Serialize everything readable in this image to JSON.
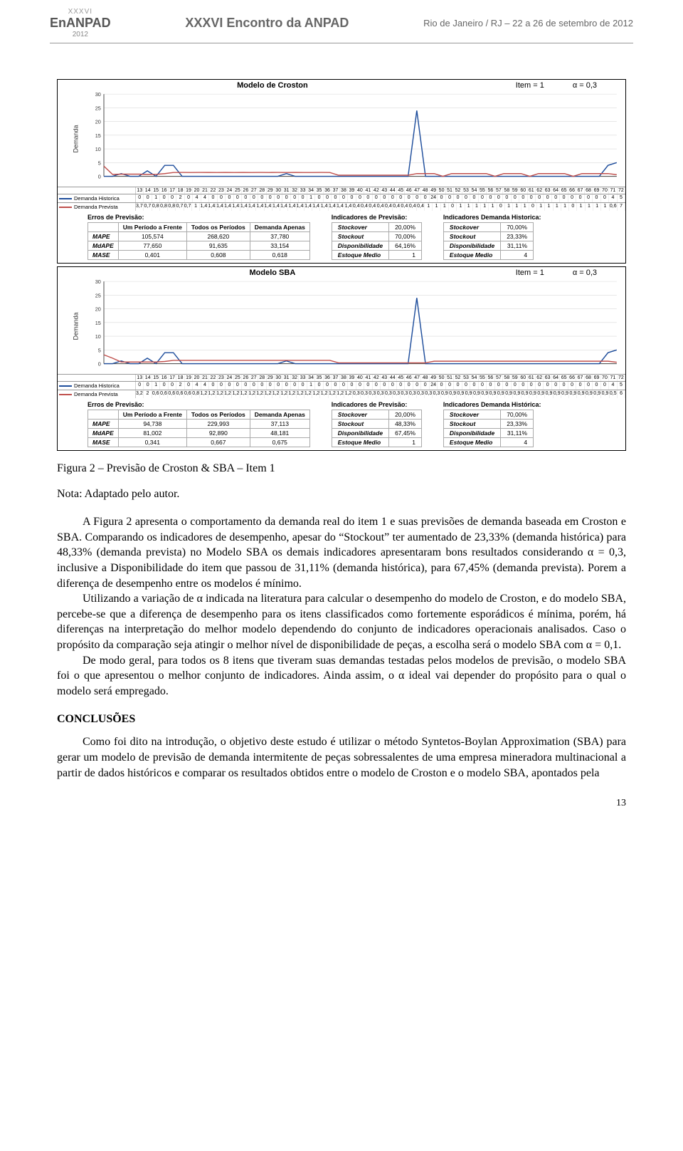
{
  "banner": {
    "roman": "XXXVI",
    "brand": "EnANPAD",
    "year": "2012",
    "center": "XXXVI Encontro da ANPAD",
    "right": "Rio de Janeiro / RJ – 22 a 26 de setembro de 2012"
  },
  "chart_common": {
    "y_ticks": [
      0,
      5,
      10,
      15,
      20,
      25,
      30
    ],
    "ymax": 30,
    "x_categories": [
      13,
      14,
      15,
      16,
      17,
      18,
      19,
      20,
      21,
      22,
      23,
      24,
      25,
      26,
      27,
      28,
      29,
      30,
      31,
      32,
      33,
      34,
      35,
      36,
      37,
      38,
      39,
      40,
      41,
      42,
      43,
      44,
      45,
      46,
      47,
      48,
      49,
      50,
      51,
      52,
      53,
      54,
      55,
      56,
      57,
      58,
      59,
      60,
      61,
      62,
      63,
      64,
      65,
      66,
      67,
      68,
      69,
      70,
      71,
      72
    ],
    "ylabel": "Demanda",
    "legend_hist": "Demanda Historica",
    "legend_prev": "Demanda Prevista",
    "item_label": "Item = 1",
    "alpha_label": "α = 0,3",
    "color_hist": "#1f4e9c",
    "color_prev": "#c0504d",
    "grid_color": "#d9d9d9",
    "axis_color": "#555555",
    "font_size_axis": 7
  },
  "croston": {
    "title": "Modelo de Croston",
    "hist": [
      0,
      0,
      1,
      0,
      0,
      2,
      0,
      4,
      4,
      0,
      0,
      0,
      0,
      0,
      0,
      0,
      0,
      0,
      0,
      0,
      0,
      1,
      0,
      0,
      0,
      0,
      0,
      0,
      0,
      0,
      0,
      0,
      0,
      0,
      0,
      0,
      24,
      0,
      0,
      0,
      0,
      0,
      0,
      0,
      0,
      0,
      0,
      0,
      0,
      0,
      0,
      0,
      0,
      0,
      0,
      0,
      0,
      0,
      4,
      5
    ],
    "prev": [
      3.73,
      0.7,
      0.8,
      0.8,
      0.8,
      0.7,
      0.71,
      1.0,
      1.4,
      1.43,
      1.4,
      1.43,
      1.41,
      1.4,
      1.41,
      1.4,
      1.41,
      1.4,
      1.43,
      1.4,
      1.43,
      1.4,
      1.41,
      1.4,
      1.4,
      1.43,
      1.4,
      0.4,
      0.4,
      0.4,
      0.4,
      0.4,
      0.4,
      0.4,
      0.4,
      0.4,
      1.0,
      1.0,
      1.0,
      0.0,
      1.0,
      1.0,
      1.0,
      1.0,
      1.0,
      0.0,
      1.0,
      1.0,
      1.0,
      0.0,
      1.0,
      1.0,
      1.0,
      1.0,
      0.0,
      1.0,
      1.0,
      1.0,
      1.0,
      0.6,
      7
    ],
    "errors": {
      "title": "Erros de Previsão:",
      "cols": [
        "",
        "Um Período a Frente",
        "Todos os Períodos",
        "Demanda Apenas"
      ],
      "rows": [
        [
          "MAPE",
          "105,574",
          "268,620",
          "37,780"
        ],
        [
          "MdAPE",
          "77,650",
          "91,635",
          "33,154"
        ],
        [
          "MASE",
          "0,401",
          "0,608",
          "0,618"
        ]
      ]
    },
    "ind_prev": {
      "title": "Indicadores de Previsão:",
      "rows": [
        [
          "Stockover",
          "20,00%"
        ],
        [
          "Stockout",
          "70,00%"
        ],
        [
          "Disponibilidade",
          "64,16%"
        ],
        [
          "Estoque Medio",
          "1"
        ]
      ]
    },
    "ind_hist": {
      "title": "Indicadores Demanda Historica:",
      "rows": [
        [
          "Stockover",
          "70,00%"
        ],
        [
          "Stockout",
          "23,33%"
        ],
        [
          "Disponibilidade",
          "31,11%"
        ],
        [
          "Estoque Medio",
          "4"
        ]
      ]
    }
  },
  "sba": {
    "title": "Modelo SBA",
    "hist": [
      0,
      0,
      1,
      0,
      0,
      2,
      0,
      4,
      4,
      0,
      0,
      0,
      0,
      0,
      0,
      0,
      0,
      0,
      0,
      0,
      0,
      1,
      0,
      0,
      0,
      0,
      0,
      0,
      0,
      0,
      0,
      0,
      0,
      0,
      0,
      0,
      24,
      0,
      0,
      0,
      0,
      0,
      0,
      0,
      0,
      0,
      0,
      0,
      0,
      0,
      0,
      0,
      0,
      0,
      0,
      0,
      0,
      0,
      4,
      5
    ],
    "prev": [
      3.23,
      2.0,
      0.6,
      0.6,
      0.6,
      0.6,
      0.6,
      0.8,
      1.2,
      1.21,
      1.2,
      1.21,
      1.2,
      1.21,
      1.2,
      1.21,
      1.2,
      1.21,
      1.2,
      1.21,
      1.2,
      1.21,
      1.2,
      1.2,
      1.2,
      1.2,
      1.2,
      0.3,
      0.3,
      0.3,
      0.3,
      0.3,
      0.3,
      0.3,
      0.3,
      0.3,
      0.3,
      0.3,
      0.9,
      0.9,
      0.9,
      0.9,
      0.9,
      0.9,
      0.9,
      0.9,
      0.9,
      0.9,
      0.9,
      0.9,
      0.9,
      0.9,
      0.9,
      0.9,
      0.9,
      0.9,
      0.9,
      0.9,
      0.9,
      0.5,
      6
    ],
    "errors": {
      "title": "Erros de Previsão:",
      "cols": [
        "",
        "Um Período a Frente",
        "Todos os Períodos",
        "Demanda Apenas"
      ],
      "rows": [
        [
          "MAPE",
          "94,738",
          "229,993",
          "37,113"
        ],
        [
          "MdAPE",
          "81,002",
          "92,890",
          "48,181"
        ],
        [
          "MASE",
          "0,341",
          "0,667",
          "0,675"
        ]
      ]
    },
    "ind_prev": {
      "title": "Indicadores de Previsão:",
      "rows": [
        [
          "Stockover",
          "20,00%"
        ],
        [
          "Stockout",
          "48,33%"
        ],
        [
          "Disponibilidade",
          "67,45%"
        ],
        [
          "Estoque Medio",
          "1"
        ]
      ]
    },
    "ind_hist": {
      "title": "Indicadores Demanda Histórica:",
      "rows": [
        [
          "Stockover",
          "70,00%"
        ],
        [
          "Stockout",
          "23,33%"
        ],
        [
          "Disponibilidade",
          "31,11%"
        ],
        [
          "Estoque Medio",
          "4"
        ]
      ]
    }
  },
  "text": {
    "caption_l1": "Figura 2 – Previsão de Croston & SBA – Item 1",
    "caption_l2": "Nota: Adaptado pelo autor.",
    "p1": "A Figura 2 apresenta o comportamento da demanda real do item 1 e suas previsões de demanda baseada em Croston e SBA. Comparando os indicadores de desempenho, apesar do “Stockout” ter aumentado de 23,33% (demanda histórica) para 48,33% (demanda prevista) no Modelo SBA os demais indicadores apresentaram bons resultados considerando α = 0,3, inclusive a Disponibilidade do item que passou de 31,11% (demanda histórica), para 67,45% (demanda prevista). Porem a diferença de desempenho entre os modelos é mínimo.",
    "p2": "Utilizando a variação de α indicada na literatura para calcular o desempenho do modelo de Croston, e do modelo SBA, percebe-se que a diferença de desempenho para os itens classificados como fortemente esporádicos é mínima, porém, há diferenças na interpretação do melhor modelo dependendo do conjunto de indicadores operacionais analisados. Caso o propósito da comparação seja atingir o melhor nível de disponibilidade de peças, a escolha será o modelo SBA com α = 0,1.",
    "p3": "De modo geral, para todos os 8 itens que tiveram suas demandas testadas pelos modelos de previsão, o modelo SBA foi o que apresentou o melhor conjunto de indicadores. Ainda assim, o α ideal vai depender do propósito para o qual o modelo será empregado.",
    "sec": "CONCLUSÕES",
    "p4": "Como foi dito na introdução, o objetivo deste estudo é utilizar o método Syntetos-Boylan Approximation (SBA) para gerar um modelo de previsão de demanda intermitente de peças sobressalentes de uma empresa mineradora multinacional a partir de dados históricos e comparar os resultados obtidos entre o modelo de Croston e o modelo SBA, apontados pela",
    "pagenum": "13"
  }
}
